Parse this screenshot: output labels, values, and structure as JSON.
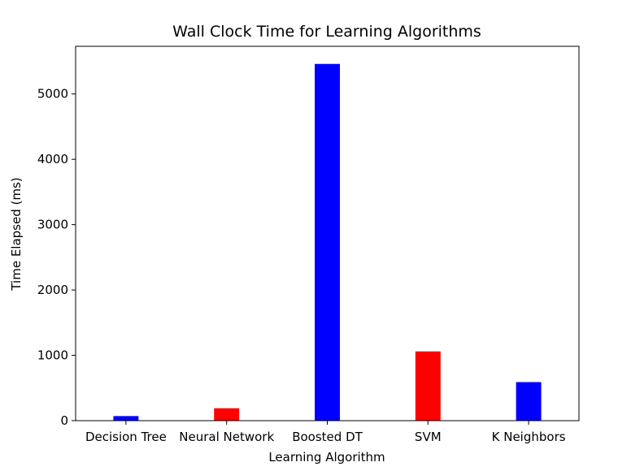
{
  "chart_data": {
    "type": "bar",
    "title": "Wall Clock Time for Learning Algorithms",
    "xlabel": "Learning Algorithm",
    "ylabel": "Time Elapsed (ms)",
    "categories": [
      "Decision Tree",
      "Neural Network",
      "Boosted DT",
      "SVM",
      "K Neighbors"
    ],
    "values": [
      70,
      190,
      5460,
      1060,
      590
    ],
    "bar_colors": [
      "#0000ff",
      "#ff0000",
      "#0000ff",
      "#ff0000",
      "#0000ff"
    ],
    "yticks": [
      0,
      1000,
      2000,
      3000,
      4000,
      5000
    ],
    "ylim": [
      0,
      5730
    ],
    "grid": false,
    "legend": "none"
  }
}
